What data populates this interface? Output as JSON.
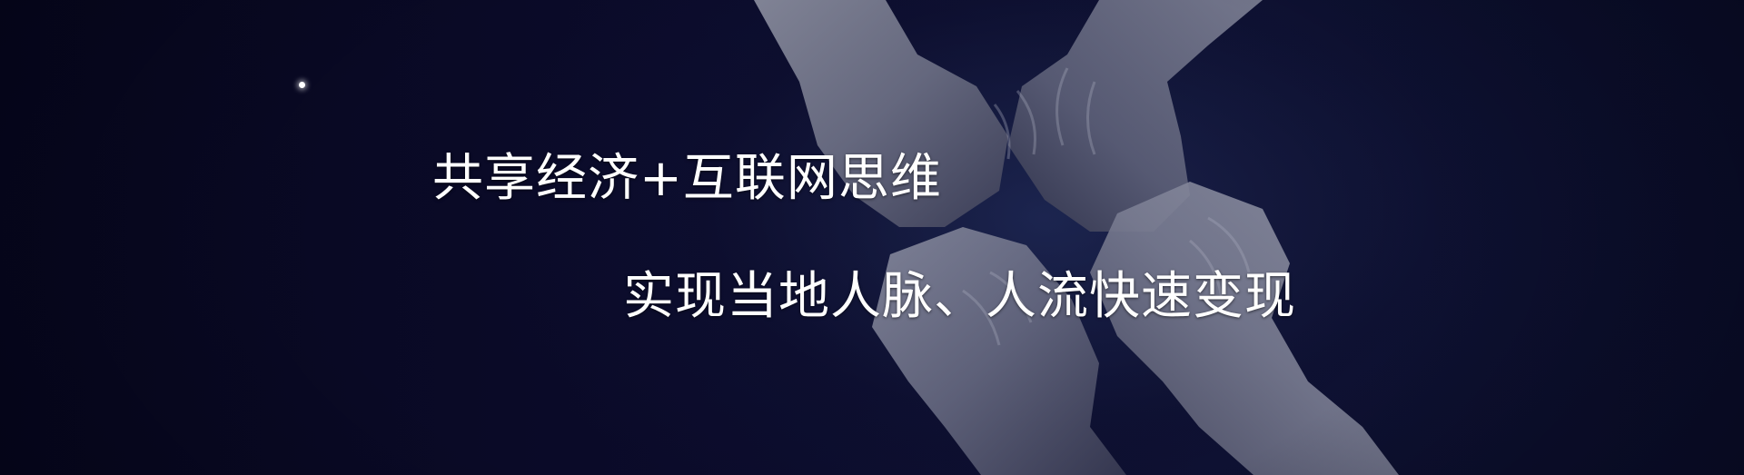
{
  "banner": {
    "headline_1": "共享经济+互联网思维",
    "headline_2": "实现当地人脉、人流快速变现"
  },
  "colors": {
    "background": "#0a0a26",
    "text": "#ffffff"
  }
}
